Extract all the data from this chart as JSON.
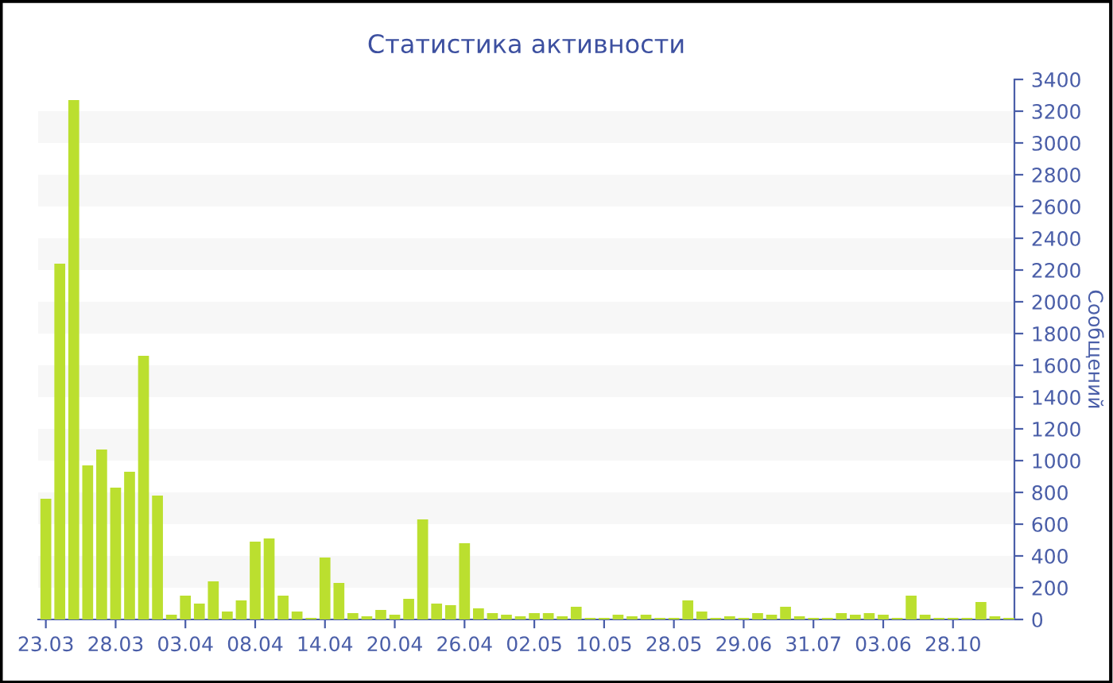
{
  "chart_data": {
    "type": "bar",
    "title": "Статистика активности",
    "ylabel": "Сообщений",
    "categories": [
      "23.03",
      null,
      null,
      null,
      null,
      "28.03",
      null,
      null,
      null,
      null,
      "03.04",
      null,
      null,
      null,
      null,
      "08.04",
      null,
      null,
      null,
      null,
      "14.04",
      null,
      null,
      null,
      null,
      "20.04",
      null,
      null,
      null,
      null,
      "26.04",
      null,
      null,
      null,
      null,
      "02.05",
      null,
      null,
      null,
      null,
      "10.05",
      null,
      null,
      null,
      null,
      "28.05",
      null,
      null,
      null,
      null,
      "29.06",
      null,
      null,
      null,
      null,
      "31.07",
      null,
      null,
      null,
      null,
      "03.06",
      null,
      null,
      null,
      null,
      "28.10",
      null,
      null,
      null,
      null
    ],
    "values": [
      760,
      2240,
      3270,
      970,
      1070,
      830,
      930,
      1660,
      780,
      30,
      150,
      100,
      240,
      50,
      120,
      490,
      510,
      150,
      50,
      10,
      390,
      230,
      40,
      20,
      60,
      30,
      130,
      630,
      100,
      90,
      480,
      70,
      40,
      30,
      20,
      40,
      40,
      20,
      80,
      10,
      10,
      30,
      20,
      30,
      10,
      10,
      120,
      50,
      10,
      20,
      10,
      40,
      30,
      80,
      20,
      10,
      10,
      40,
      30,
      40,
      30,
      10,
      150,
      30,
      10,
      10,
      10,
      110,
      20,
      10
    ],
    "color": "#bbdf2f",
    "ylim": [
      0,
      3400
    ],
    "yticks": [
      0,
      200,
      400,
      600,
      800,
      1000,
      1200,
      1400,
      1600,
      1800,
      2000,
      2200,
      2400,
      2600,
      2800,
      3000,
      3200,
      3400
    ],
    "bands": [
      {
        "axis": "y",
        "from": 200,
        "to": 400,
        "color": "#f7f7f7"
      },
      {
        "axis": "y",
        "from": 600,
        "to": 800,
        "color": "#f7f7f7"
      },
      {
        "axis": "y",
        "from": 1000,
        "to": 1200,
        "color": "#f7f7f7"
      },
      {
        "axis": "y",
        "from": 1400,
        "to": 1600,
        "color": "#f7f7f7"
      },
      {
        "axis": "y",
        "from": 1800,
        "to": 2000,
        "color": "#f7f7f7"
      },
      {
        "axis": "y",
        "from": 2200,
        "to": 2400,
        "color": "#f7f7f7"
      },
      {
        "axis": "y",
        "from": 2600,
        "to": 2800,
        "color": "#f7f7f7"
      },
      {
        "axis": "y",
        "from": 3000,
        "to": 3200,
        "color": "#f7f7f7"
      }
    ],
    "legend": false
  }
}
